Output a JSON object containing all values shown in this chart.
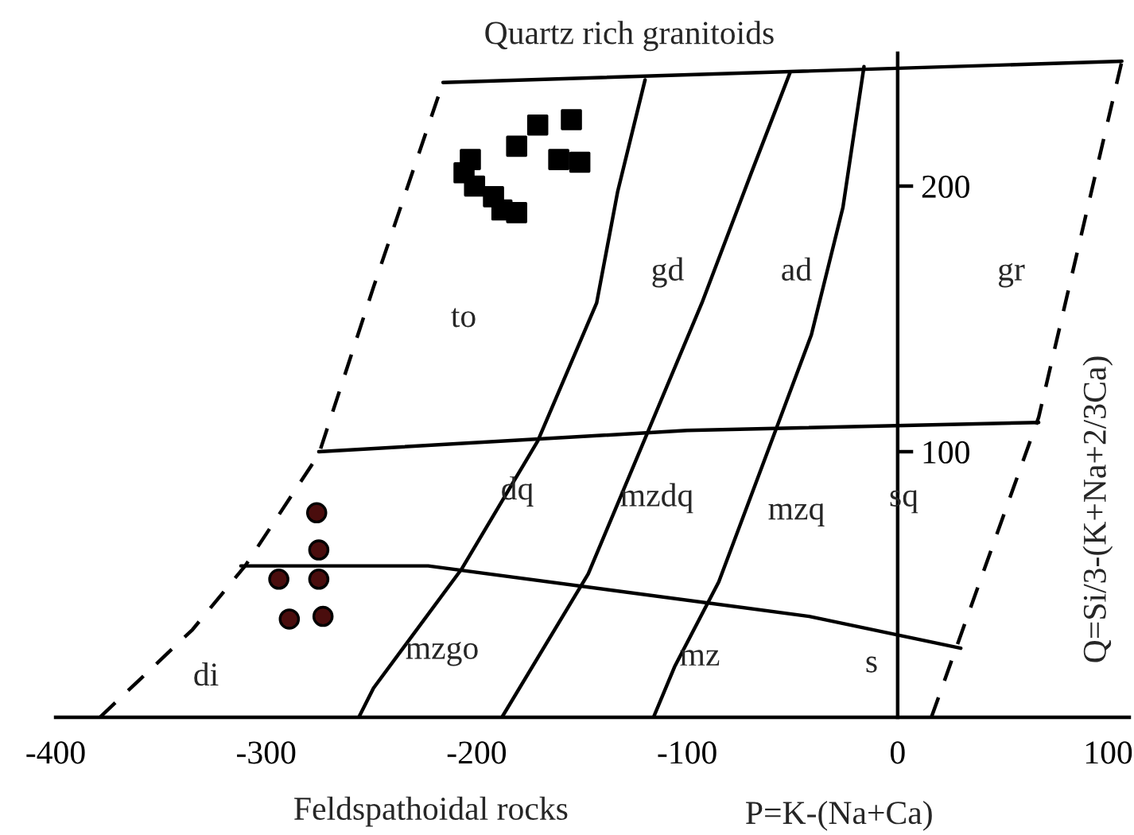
{
  "chart_data": {
    "type": "scatter",
    "title": "Quartz rich granitoids",
    "xlabel": "P=K-(Na+Ca)",
    "ylabel": "Q=Si/3-(K+Na+2/3Ca)",
    "xlim": [
      -400,
      110
    ],
    "ylim": [
      0,
      250
    ],
    "xticks": [
      -400,
      -300,
      -200,
      -100,
      0,
      100
    ],
    "yticks": [
      100,
      200
    ],
    "grid": false,
    "annotations": [
      "to",
      "gd",
      "ad",
      "gr",
      "dq",
      "mzdq",
      "mzq",
      "sq",
      "di",
      "mzgo",
      "mz",
      "s",
      "Feldspathoidal rocks"
    ],
    "series": [
      {
        "marker": "square",
        "color": "#000000",
        "x": [
          -203,
          -206,
          -201,
          -192,
          -188,
          -181,
          -181,
          -171,
          -155,
          -161,
          -151
        ],
        "values": [
          210,
          205,
          200,
          196,
          191,
          190,
          215,
          223,
          225,
          210,
          209
        ]
      },
      {
        "marker": "circle",
        "color": "#4a0d0d",
        "x": [
          -276,
          -275,
          -294,
          -275,
          -289,
          -273
        ],
        "values": [
          77,
          63,
          52,
          52,
          37,
          38
        ]
      },
      {
        "type": "line",
        "line_style": "solid",
        "color": "#000000",
        "x": [
          -216,
          106.5
        ],
        "values": [
          239,
          247
        ]
      },
      {
        "type": "line",
        "line_style": "dashed",
        "color": "#000000",
        "x": [
          -379,
          -335,
          -310,
          -275,
          -249,
          -216
        ],
        "values": [
          0,
          33,
          57,
          99,
          162,
          239
        ]
      },
      {
        "type": "line",
        "line_style": "dashed",
        "color": "#000000",
        "x": [
          16,
          67,
          106.5
        ],
        "values": [
          0,
          113,
          247
        ]
      },
      {
        "type": "line",
        "line_style": "solid",
        "color": "#000000",
        "x": [
          -275,
          -100,
          67
        ],
        "values": [
          100,
          108,
          111
        ]
      },
      {
        "type": "line",
        "line_style": "solid",
        "color": "#000000",
        "x": [
          -312,
          -223,
          -42,
          30
        ],
        "values": [
          57,
          57,
          38,
          26
        ]
      },
      {
        "type": "line",
        "line_style": "solid",
        "color": "#000000",
        "x": [
          -256,
          -249,
          -207,
          -171,
          -143,
          -133,
          -120
        ],
        "values": [
          0,
          11,
          56,
          104,
          156,
          198,
          240
        ]
      },
      {
        "type": "line",
        "line_style": "solid",
        "color": "#000000",
        "x": [
          -188,
          -147,
          -120,
          -93,
          -70,
          -51
        ],
        "values": [
          0,
          54,
          105,
          156,
          204,
          243
        ]
      },
      {
        "type": "line",
        "line_style": "solid",
        "color": "#000000",
        "x": [
          -116,
          -106,
          -85,
          -58,
          -41,
          -26,
          -16
        ],
        "values": [
          0,
          19,
          51,
          108,
          144,
          192,
          245
        ]
      }
    ]
  }
}
